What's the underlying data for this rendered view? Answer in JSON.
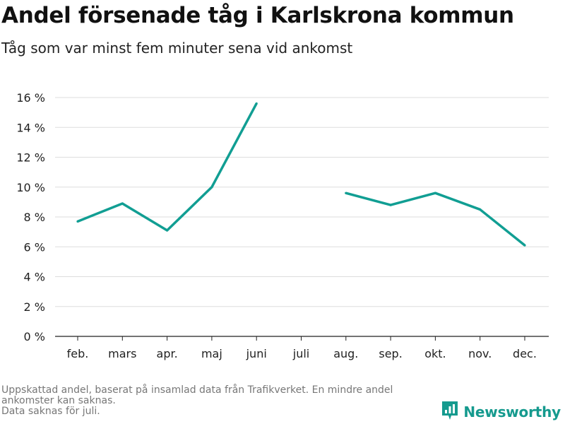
{
  "header": {
    "title": "Andel försenade tåg i Karlskrona kommun",
    "subtitle": "Tåg som var minst fem minuter sena vid ankomst"
  },
  "footer": {
    "lines": [
      "Uppskattad andel, baserat på insamlad data från Trafikverket. En mindre andel",
      "ankomster kan saknas.",
      "Data saknas för juli."
    ]
  },
  "brand": {
    "name": "Newsworthy",
    "icon": "newsworthy-logo-icon",
    "color": "#159a8e"
  },
  "chart_data": {
    "type": "line",
    "categories": [
      "feb.",
      "mars",
      "apr.",
      "maj",
      "juni",
      "juli",
      "aug.",
      "sep.",
      "okt.",
      "nov.",
      "dec."
    ],
    "series": [
      {
        "values": [
          7.7,
          8.9,
          7.1,
          10.0,
          15.6,
          null,
          9.6,
          8.8,
          9.6,
          8.5,
          6.1
        ],
        "color": "#119e93"
      }
    ],
    "ylim": [
      0,
      16
    ],
    "yticks": [
      0,
      2,
      4,
      6,
      8,
      10,
      12,
      14,
      16
    ],
    "ytick_suffix": " %",
    "grid": true,
    "legend": "none"
  }
}
